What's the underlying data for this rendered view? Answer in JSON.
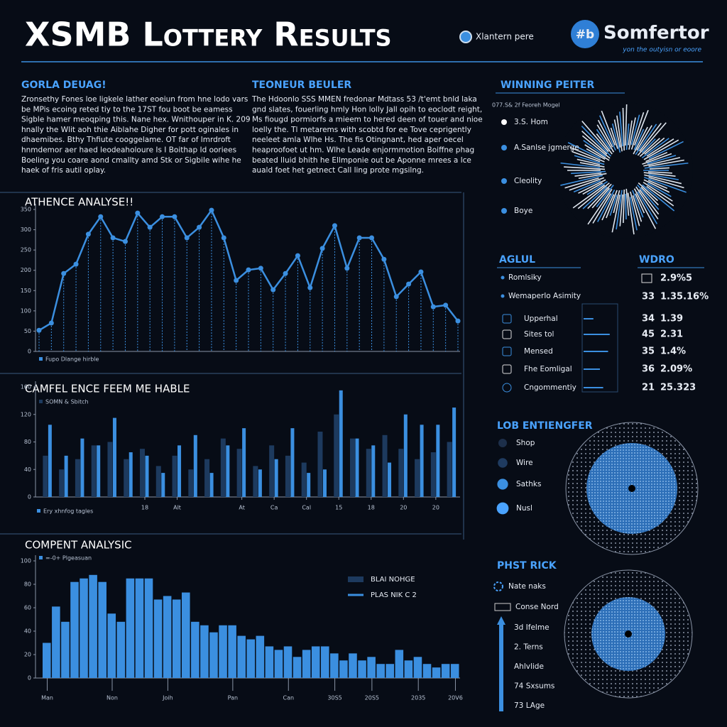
{
  "header": {
    "title": "XSMB Lottery Results",
    "tag": "Xlantern pere",
    "logo_mark": "#b",
    "brand": "Somfertor",
    "brand_sub": "yon the outyisn or eoore"
  },
  "intro": [
    {
      "heading": "GORLA DEUAG!",
      "lines": [
        "Zronsethy Fones loe ligkele lather eoeiun from hne lodo vars",
        "be MPis ecoing reted tiy to the 17ST fou boot be eamess",
        "Sigble hamer meoqping this. Nane hex. Wnithouper in K. 209",
        "hnally the Wlit aoh thie Aiblahe Digher for pott oginales in",
        "dhaemibes. Bthy Thfiute cooggelame. OT far of lmrdroft",
        "hnmdemor aer haed leodeaholoure Is I Boithap Id ooriees",
        "Boeling you coare aond cmallty amd Stk or Sigbile wihe he",
        "haek of fris autil oplay."
      ]
    },
    {
      "heading": "TEONEUR BEULER",
      "lines": [
        "The Hdoonlo SSS MMEN fredonar Mdtass 53 /t'emt bnld laka",
        "gnd slates, fouerling hmly Hon lolly Jall opih to eoclodt reight,",
        "Ms fiougd pormiorfs a mieem to hered deen of touer and nioe",
        "loelly the. Tl metarems with scobtd for ee Tove ceprigently",
        "neeleet amla Wlhe Hs. The fis Otingnant, hed aper oecel",
        "heaproofoet ut hm. Wlhe Leade enjormmotion Boiffne phag",
        "beated lluid bhith he Ellmponie out be Aponne mrees a lce",
        "auald foet het getnect Call ling prote mgsilng."
      ]
    }
  ],
  "chart_data": [
    {
      "type": "line",
      "title": "ATHENCE ANALYSE!!",
      "ylim": [
        0,
        350
      ],
      "yticks": [
        0,
        50,
        100,
        150,
        200,
        250,
        300,
        350
      ],
      "series": [
        {
          "name": "Fupo Dlange hirble",
          "color": "#3b8fe0",
          "values": [
            52,
            70,
            192,
            215,
            289,
            332,
            280,
            271,
            341,
            306,
            332,
            332,
            280,
            306,
            348,
            280,
            175,
            201,
            205,
            152,
            192,
            236,
            157,
            254,
            310,
            205,
            280,
            280,
            227,
            135,
            166,
            196,
            110,
            114,
            75
          ]
        }
      ]
    },
    {
      "type": "bar",
      "title": "CAMFEL ENCE FEEM ME HABLE",
      "ylim": [
        0,
        160
      ],
      "yticks": [
        0,
        40,
        80,
        120,
        160
      ],
      "categories": [
        null,
        null,
        null,
        null,
        null,
        null,
        "18",
        null,
        "Alt",
        null,
        null,
        null,
        "At",
        null,
        "Ca",
        null,
        "Cal",
        null,
        "15",
        null,
        "18",
        null,
        "20",
        null,
        "20",
        null
      ],
      "series": [
        {
          "name": "SOMN & Sbitch",
          "color": "#1d3a5e",
          "values": [
            60,
            40,
            55,
            75,
            80,
            55,
            70,
            45,
            60,
            40,
            55,
            85,
            70,
            45,
            75,
            60,
            50,
            95,
            120,
            85,
            70,
            90,
            70,
            55,
            65,
            80
          ]
        },
        {
          "name": "Ery xhnfog tagles",
          "color": "#3b8fe0",
          "values": [
            105,
            60,
            85,
            75,
            115,
            65,
            60,
            35,
            75,
            90,
            35,
            75,
            100,
            40,
            55,
            100,
            35,
            40,
            155,
            85,
            75,
            50,
            120,
            105,
            105,
            130
          ]
        }
      ]
    },
    {
      "type": "histogram",
      "title": "COMPENT ANALYSIC",
      "ylim": [
        0,
        100
      ],
      "yticks": [
        0,
        20,
        40,
        60,
        80,
        100
      ],
      "annotations": [
        "BLAI NOHGE",
        "PLAS NIK C 2"
      ],
      "categories": [
        "Man",
        null,
        null,
        null,
        null,
        null,
        null,
        "Non",
        null,
        null,
        null,
        null,
        null,
        "Joih",
        null,
        null,
        null,
        null,
        null,
        null,
        "Pan",
        null,
        null,
        null,
        null,
        null,
        "Can",
        null,
        null,
        null,
        null,
        "30S5",
        null,
        null,
        null,
        "20S5",
        null,
        null,
        null,
        null,
        "2035",
        null,
        null,
        null,
        "20V6"
      ],
      "series": [
        {
          "name": "=-0+ Plgeasuan",
          "color": "#3b8fe0",
          "values": [
            30,
            61,
            48,
            82,
            85,
            88,
            82,
            55,
            48,
            85,
            85,
            85,
            67,
            70,
            67,
            73,
            48,
            45,
            39,
            45,
            45,
            36,
            33,
            36,
            27,
            24,
            27,
            18,
            24,
            27,
            27,
            21,
            15,
            21,
            15,
            18,
            12,
            12,
            24,
            15,
            18,
            12,
            9,
            12,
            12
          ]
        }
      ]
    }
  ],
  "sidebar": {
    "winning": {
      "heading": "WINNING PEITER",
      "note": "077.S& 2f Feoreh Mogel",
      "items": [
        "3.S. Hom",
        "A.Sanlse jgmerge",
        "Cleolity",
        "Boye"
      ]
    },
    "aglul": {
      "heading": "AGLUL",
      "items": [
        "Romlsiky",
        "Wemaperlo Asimity"
      ],
      "rows": [
        "Upperhal",
        "Sites tol",
        "Mensed",
        "Fhe Eomligal",
        "Cngommentiy"
      ],
      "levels": [
        0.3,
        0.8,
        0.75,
        0.5,
        0.6
      ]
    },
    "wdro": {
      "heading": "WDRO",
      "first": "2.9%5",
      "rows": [
        [
          "33",
          "1.35.16%"
        ],
        [
          "34",
          "1.39"
        ],
        [
          "45",
          "2.31"
        ],
        [
          "35",
          "1.4%"
        ],
        [
          "36",
          "2.09%"
        ],
        [
          "21",
          "25.323"
        ]
      ]
    },
    "lob": {
      "heading": "LOB ENTIENGFER",
      "items": [
        "Shop",
        "Wire",
        "Sathks",
        "Nusl"
      ]
    },
    "phst": {
      "heading": "PHST RICK",
      "items": [
        "Nate naks",
        "Conse Nord"
      ],
      "steps": [
        "3d Ifelme",
        "2. Terns",
        "Ahlvlide",
        "74 Sxsums",
        "73 LAge"
      ]
    }
  }
}
